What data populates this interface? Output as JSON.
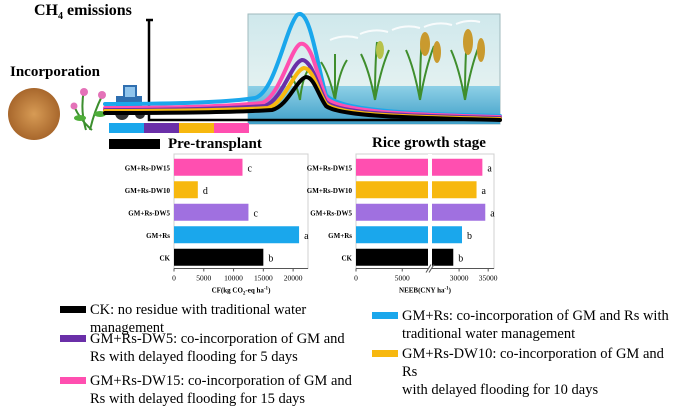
{
  "titles": {
    "ch4_prefix": "CH",
    "ch4_sub": "4",
    "ch4_suffix": " emissions",
    "incorporation": "Incorporation",
    "pre_transplant": "Pre-transplant",
    "rice_growth_stage": "Rice growth stage"
  },
  "colors": {
    "CK": "#000000",
    "GM+Rs": "#1aa7ec",
    "GM+Rs-DW5": "#a070e0",
    "GM+Rs-DW10": "#f7b80f",
    "GM+Rs-DW15": "#ff4fb0",
    "DW5_legend": "#6a2fa8"
  },
  "strip_colors": [
    "#1aa7ec",
    "#6a2fa8",
    "#f7b80f",
    "#ff4fb0"
  ],
  "chart_data": [
    {
      "type": "bar",
      "orientation": "horizontal",
      "categories": [
        "GM+Rs-DW15",
        "GM+Rs-DW10",
        "GM+Rs-DW5",
        "GM+Rs",
        "CK"
      ],
      "values": [
        11500,
        4000,
        12500,
        21000,
        15000
      ],
      "letters": [
        "c",
        "d",
        "c",
        "a",
        "b"
      ],
      "xlabel_prefix": "CF(kg CO",
      "xlabel_sub": "2",
      "xlabel_mid": "-eq ha",
      "xlabel_sup": "-1",
      "xlabel_suffix": ")",
      "xticks": [
        "0",
        "5000",
        "10000",
        "15000",
        "20000"
      ],
      "xlim": [
        0,
        22500
      ]
    },
    {
      "type": "bar",
      "orientation": "horizontal",
      "axis_break": true,
      "categories": [
        "GM+Rs-DW15",
        "GM+Rs-DW10",
        "GM+Rs-DW5",
        "GM+Rs",
        "CK"
      ],
      "values": [
        34000,
        33000,
        34500,
        30500,
        29000
      ],
      "letters": [
        "a",
        "a",
        "a",
        "b",
        "b"
      ],
      "xlabel_prefix": "NEEB(CNY ha",
      "xlabel_sup": "-1",
      "xlabel_suffix": ")",
      "xticks": [
        "0",
        "5000",
        "30000",
        "35000"
      ],
      "xlim": [
        0,
        36000
      ]
    }
  ],
  "legend": [
    {
      "key": "CK",
      "color": "#000000",
      "lines": [
        "CK: no residue with traditional water management"
      ]
    },
    {
      "key": "GM+Rs",
      "color": "#1aa7ec",
      "lines": [
        "GM+Rs: co-incorporation of GM and Rs with",
        "traditional water management"
      ]
    },
    {
      "key": "GM+Rs-DW5",
      "color": "#6a2fa8",
      "lines": [
        "GM+Rs-DW5: co-incorporation of GM and",
        "Rs with delayed flooding for 5 days"
      ]
    },
    {
      "key": "GM+Rs-DW10",
      "color": "#f7b80f",
      "lines": [
        "GM+Rs-DW10: co-incorporation of GM and Rs",
        "with delayed flooding for 10 days"
      ]
    },
    {
      "key": "GM+Rs-DW15",
      "color": "#ff4fb0",
      "lines": [
        "GM+Rs-DW15: co-incorporation of GM and",
        "Rs with delayed flooding for 15 days"
      ]
    }
  ]
}
